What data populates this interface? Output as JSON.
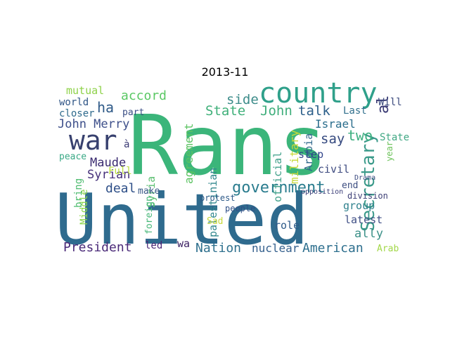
{
  "title": "2013-11",
  "words": [
    {
      "text": "Rans",
      "color": "#3bb57a"
    },
    {
      "text": "United",
      "color": "#2f6b8e"
    },
    {
      "text": "country",
      "color": "#2fa08a"
    },
    {
      "text": "war",
      "color": "#37406e"
    },
    {
      "text": "government",
      "color": "#2a7c8e"
    },
    {
      "text": "Secretary",
      "color": "#3b9a8a"
    },
    {
      "text": "John Merry",
      "color": "#3d4f8a"
    },
    {
      "text": "State",
      "color": "#40b07a"
    },
    {
      "text": "John",
      "color": "#3fae7b"
    },
    {
      "text": "talk",
      "color": "#2c5f8a"
    },
    {
      "text": "President",
      "color": "#4a2a78"
    },
    {
      "text": "Nation",
      "color": "#30718e"
    },
    {
      "text": "American",
      "color": "#2e6f8e"
    },
    {
      "text": "nuclear",
      "color": "#35608d"
    },
    {
      "text": "accord",
      "color": "#5ac864"
    },
    {
      "text": "deal",
      "color": "#2d4e87"
    },
    {
      "text": "Maude",
      "color": "#3a2b70"
    },
    {
      "text": "Syrian",
      "color": "#45307a"
    },
    {
      "text": "mutual",
      "color": "#8fd24a"
    },
    {
      "text": "ha",
      "color": "#2f5a88"
    },
    {
      "text": "side",
      "color": "#3d8c8a"
    },
    {
      "text": "say",
      "color": "#35497f"
    },
    {
      "text": "two",
      "color": "#3eb080"
    },
    {
      "text": "Israel",
      "color": "#2a6d8c"
    },
    {
      "text": "agreement",
      "color": "#5cc362"
    },
    {
      "text": "Syria",
      "color": "#5bbf70"
    },
    {
      "text": "palestinian",
      "color": "#31878d"
    },
    {
      "text": "military",
      "color": "#c7d93a"
    },
    {
      "text": "Arabia",
      "color": "#31688c"
    },
    {
      "text": "official",
      "color": "#3e9f88"
    },
    {
      "text": "al",
      "color": "#3a3a74"
    },
    {
      "text": "group",
      "color": "#2f818d"
    },
    {
      "text": "ally",
      "color": "#3b9088"
    },
    {
      "text": "role",
      "color": "#2e5a88"
    },
    {
      "text": "latest",
      "color": "#3f4f85"
    },
    {
      "text": "step",
      "color": "#30438a"
    },
    {
      "text": "civil",
      "color": "#3e4b80"
    },
    {
      "text": "Middle",
      "color": "#8dd54c"
    },
    {
      "text": "bring",
      "color": "#4cbb6e"
    },
    {
      "text": "peace",
      "color": "#3aa986"
    },
    {
      "text": "Full",
      "color": "#b9de3a"
    },
    {
      "text": "make",
      "color": "#3b5a88"
    },
    {
      "text": "led",
      "color": "#4a2675"
    },
    {
      "text": "wa",
      "color": "#3b1f62"
    },
    {
      "text": "world",
      "color": "#2f5586"
    },
    {
      "text": "closer",
      "color": "#2e6a8c"
    },
    {
      "text": "part",
      "color": "#3a4e84"
    },
    {
      "text": "Last",
      "color": "#32708d"
    },
    {
      "text": "end",
      "color": "#3c4d80"
    },
    {
      "text": "Will",
      "color": "#3c4b7e"
    },
    {
      "text": "State",
      "color": "#41a884"
    },
    {
      "text": "year",
      "color": "#6cc25a"
    },
    {
      "text": "Arab",
      "color": "#a3d84a"
    },
    {
      "text": "division",
      "color": "#3d3f76"
    },
    {
      "text": "protest",
      "color": "#2e5a88"
    },
    {
      "text": "people",
      "color": "#2f4f86"
    },
    {
      "text": "Sad",
      "color": "#c7d93a"
    },
    {
      "text": "foreign",
      "color": "#48b87a"
    },
    {
      "text": "Drama",
      "color": "#3b4b80"
    },
    {
      "text": "opposition",
      "color": "#3a3d78"
    },
    {
      "text": "à",
      "color": "#3b3a74"
    }
  ]
}
